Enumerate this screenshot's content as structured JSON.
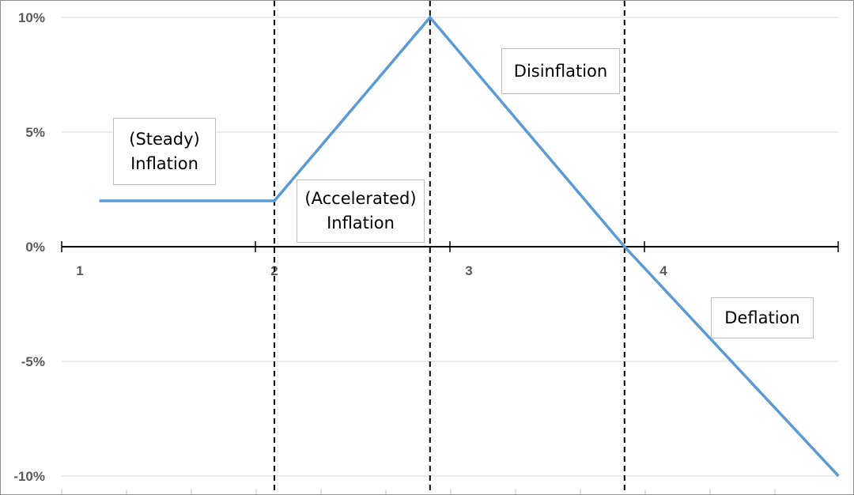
{
  "chart_data": {
    "type": "line",
    "title": "",
    "xlabel": "",
    "ylabel": "",
    "ylim": [
      -10,
      10
    ],
    "y_unit": "%",
    "y_ticks": [
      "10%",
      "5%",
      "0%",
      "-5%",
      "-10%"
    ],
    "x_ticks": [
      "1",
      "2",
      "3",
      "4"
    ],
    "grid": true,
    "series": [
      {
        "color": "#5b9bd5",
        "x": [
          1.1,
          2.0,
          2.8,
          3.8,
          4.9
        ],
        "y": [
          2,
          2,
          10,
          0,
          -10
        ]
      }
    ],
    "phase_dividers_x": [
      2.0,
      2.8,
      3.8
    ],
    "annotations": [
      {
        "id": "steady",
        "lines": [
          "(Steady)",
          "Inflation"
        ]
      },
      {
        "id": "accelerated",
        "lines": [
          "(Accelerated)",
          "Inflation"
        ]
      },
      {
        "id": "disinflation",
        "lines": [
          "Disinflation"
        ]
      },
      {
        "id": "deflation",
        "lines": [
          "Deflation"
        ]
      }
    ]
  },
  "colors": {
    "line": "#5b9bd5",
    "gridline": "#d9d9d9",
    "axis": "#000000",
    "divider": "#000000",
    "tick_text": "#595959"
  }
}
